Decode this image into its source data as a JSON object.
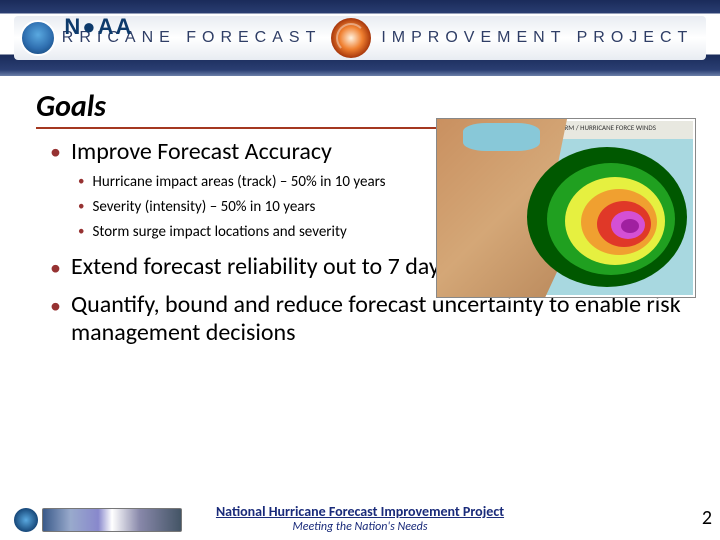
{
  "banner": {
    "org": "N●AA",
    "title_left": "HURRICANE FORECAST",
    "title_right": "IMPROVEMENT PROJECT"
  },
  "title": "Goals",
  "goals": [
    {
      "text": "Improve Forecast Accuracy",
      "sub": [
        "Hurricane impact areas (track) – 50% in 10 years",
        "Severity (intensity) – 50% in 10 years",
        "Storm surge impact locations and severity"
      ]
    },
    {
      "text": "Extend forecast reliability out to 7 days",
      "sub": []
    },
    {
      "text": "Quantify, bound and reduce forecast uncertainty to enable risk management decisions",
      "sub": []
    }
  ],
  "map": {
    "caption": "PROBABILITY OF TROPICAL STORM / HURRICANE FORCE WINDS",
    "cone_colors": [
      "#005800",
      "#20a020",
      "#e6f040",
      "#f0a030",
      "#e03828",
      "#d450d4",
      "#a020a0"
    ],
    "land_color": "#d4a777",
    "ocean_color": "#a8d8e0"
  },
  "footer": {
    "title": "National Hurricane Forecast Improvement Project",
    "subtitle": "Meeting the Nation's Needs"
  },
  "page_number": "2",
  "colors": {
    "bullet_accent": "#963232",
    "rule": "#a43820",
    "banner_dark": "#1a2b5a",
    "footer_text": "#1a2b7a"
  }
}
